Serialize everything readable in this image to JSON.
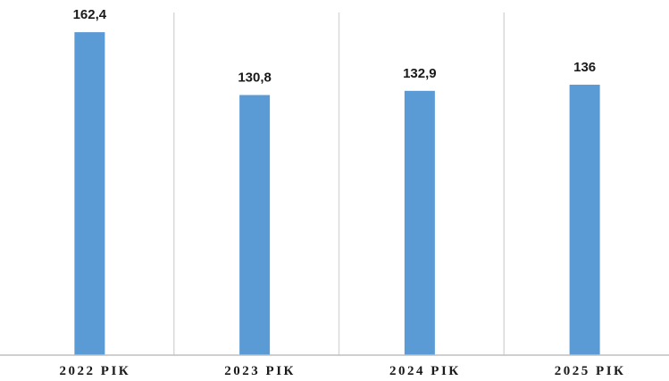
{
  "chart_data": {
    "type": "bar",
    "categories": [
      "2022 РІК",
      "2023 РІК",
      "2024 РІК",
      "2025 РІК"
    ],
    "series": [
      {
        "values": [
          162.4,
          130.8,
          132.9,
          136
        ],
        "labels": [
          "162,4",
          "130,8",
          "132,9",
          "136"
        ]
      }
    ],
    "bar_color": "#5b9bd5",
    "ylim": [
      0,
      175
    ],
    "grid": false,
    "legend": "none"
  }
}
